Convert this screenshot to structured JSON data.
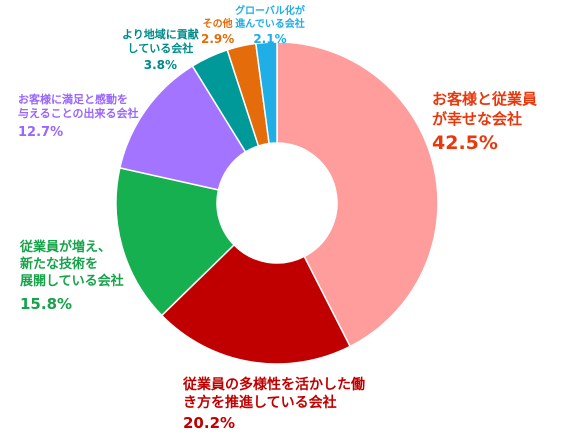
{
  "chart_data": {
    "type": "pie",
    "variant": "donut",
    "title": "",
    "legend": "none",
    "slices": [
      {
        "label_lines": [
          "お客様と従業員",
          "が幸せな会社"
        ],
        "value": 42.5,
        "value_label": "42.5%",
        "color": "#FF9C9C",
        "label_color": "#E8380D"
      },
      {
        "label_lines": [
          "従業員の多様性を活かした働",
          "き方を推進している会社"
        ],
        "value": 20.2,
        "value_label": "20.2%",
        "color": "#C00000",
        "label_color": "#C00000"
      },
      {
        "label_lines": [
          "従業員が増え、",
          "新たな技術を",
          "展開している会社"
        ],
        "value": 15.8,
        "value_label": "15.8%",
        "color": "#16B050",
        "label_color": "#16A34A"
      },
      {
        "label_lines": [
          "お客様に満足と感動を",
          "与えることの出来る会社"
        ],
        "value": 12.7,
        "value_label": "12.7%",
        "color": "#A374FF",
        "label_color": "#9966FF"
      },
      {
        "label_lines": [
          "より地域に貢献",
          "している会社"
        ],
        "value": 3.8,
        "value_label": "3.8%",
        "color": "#009999",
        "label_color": "#008B8B"
      },
      {
        "label_lines": [
          "その他"
        ],
        "value": 2.9,
        "value_label": "2.9%",
        "color": "#E46C0A",
        "label_color": "#E46C0A"
      },
      {
        "label_lines": [
          "グローバル化が",
          "進んでいる会社"
        ],
        "value": 2.1,
        "value_label": "2.1%",
        "color": "#1FAEE6",
        "label_color": "#1FAEE6"
      }
    ]
  }
}
